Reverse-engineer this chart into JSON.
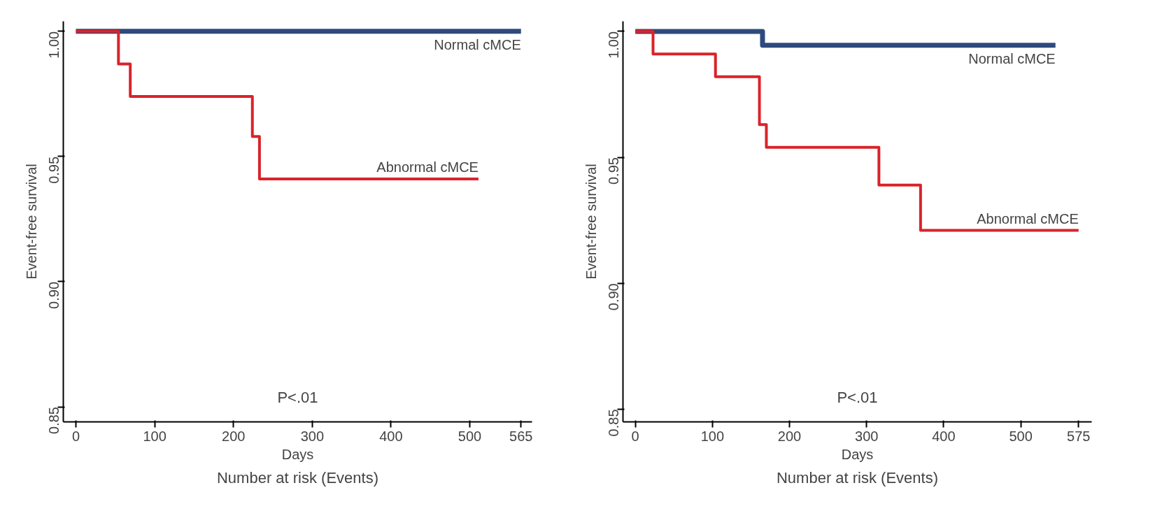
{
  "chart_data": [
    {
      "type": "step",
      "xlabel": "Days",
      "ylabel": "Event-free survival",
      "xlim": [
        -16,
        579
      ],
      "ylim": [
        0.844,
        1.004
      ],
      "xticks": [
        0,
        100,
        200,
        300,
        400,
        500,
        565
      ],
      "yticks": [
        {
          "value": 0.85,
          "label": "0.85"
        },
        {
          "value": 0.9,
          "label": "0.90"
        },
        {
          "value": 0.95,
          "label": "0.95"
        },
        {
          "value": 1.0,
          "label": "1.00"
        }
      ],
      "grid": false,
      "legend": false,
      "annotations": [
        "P<.01",
        "Number at risk (Events)"
      ],
      "series": [
        {
          "name": "Normal cMCE",
          "color": "#2e4a7d",
          "x": [
            0,
            565
          ],
          "values": [
            1.0,
            1.0
          ]
        },
        {
          "name": "Abnormal cMCE",
          "color": "#d9232a",
          "x": [
            0,
            54,
            69,
            224,
            233,
            511
          ],
          "values": [
            1.0,
            0.987,
            0.974,
            0.958,
            0.941,
            0.941
          ]
        }
      ]
    },
    {
      "type": "step",
      "xlabel": "Days",
      "ylabel": "Event-free survival",
      "xlim": [
        -16,
        592
      ],
      "ylim": [
        0.845,
        1.004
      ],
      "xticks": [
        0,
        100,
        200,
        300,
        400,
        500,
        575
      ],
      "yticks": [
        {
          "value": 0.85,
          "label": "0.85"
        },
        {
          "value": 0.9,
          "label": "0.90"
        },
        {
          "value": 0.95,
          "label": "0.95"
        },
        {
          "value": 1.0,
          "label": "1.00"
        }
      ],
      "grid": false,
      "legend": false,
      "annotations": [
        "P<.01",
        "Number at risk (Events)"
      ],
      "series": [
        {
          "name": "Normal cMCE",
          "color": "#2e4a7d",
          "x": [
            0,
            165,
            545
          ],
          "values": [
            1.0,
            0.9945,
            0.9945
          ]
        },
        {
          "name": "Abnormal cMCE",
          "color": "#d9232a",
          "x": [
            0,
            23,
            104,
            161,
            170,
            316,
            370,
            575
          ],
          "values": [
            1.0,
            0.991,
            0.982,
            0.963,
            0.954,
            0.939,
            0.921,
            0.921
          ]
        }
      ]
    }
  ]
}
